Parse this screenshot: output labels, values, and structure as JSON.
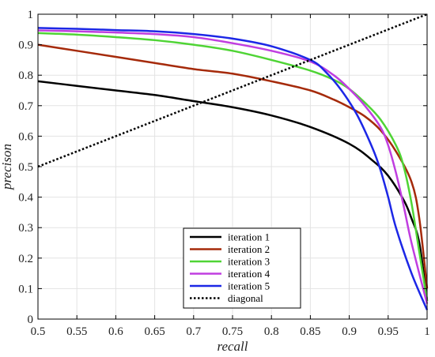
{
  "chart_data": {
    "type": "line",
    "xlabel": "recall",
    "ylabel": "precison",
    "xlim": [
      0.5,
      1.0
    ],
    "ylim": [
      0,
      1
    ],
    "x_ticks": [
      "0.5",
      "0.55",
      "0.6",
      "0.65",
      "0.7",
      "0.75",
      "0.8",
      "0.85",
      "0.9",
      "0.95",
      "1"
    ],
    "y_ticks": [
      "0",
      "0.1",
      "0.2",
      "0.3",
      "0.4",
      "0.5",
      "0.6",
      "0.7",
      "0.8",
      "0.9",
      "1"
    ],
    "grid": true,
    "legend_position": "bottom-center",
    "series": [
      {
        "name": "iteration 1",
        "color": "#000000",
        "dashed": false,
        "points": [
          [
            0.5,
            0.78
          ],
          [
            0.55,
            0.765
          ],
          [
            0.6,
            0.75
          ],
          [
            0.65,
            0.735
          ],
          [
            0.7,
            0.715
          ],
          [
            0.75,
            0.695
          ],
          [
            0.8,
            0.668
          ],
          [
            0.85,
            0.63
          ],
          [
            0.9,
            0.575
          ],
          [
            0.93,
            0.52
          ],
          [
            0.95,
            0.47
          ],
          [
            0.97,
            0.39
          ],
          [
            0.98,
            0.33
          ],
          [
            0.99,
            0.25
          ],
          [
            1.0,
            0.06
          ]
        ]
      },
      {
        "name": "iteration 2",
        "color": "#a52a0a",
        "dashed": false,
        "points": [
          [
            0.5,
            0.9
          ],
          [
            0.55,
            0.88
          ],
          [
            0.6,
            0.86
          ],
          [
            0.65,
            0.84
          ],
          [
            0.7,
            0.82
          ],
          [
            0.75,
            0.805
          ],
          [
            0.8,
            0.78
          ],
          [
            0.85,
            0.75
          ],
          [
            0.88,
            0.72
          ],
          [
            0.9,
            0.695
          ],
          [
            0.92,
            0.665
          ],
          [
            0.94,
            0.62
          ],
          [
            0.96,
            0.55
          ],
          [
            0.98,
            0.45
          ],
          [
            0.99,
            0.33
          ],
          [
            1.0,
            0.1
          ]
        ]
      },
      {
        "name": "iteration 3",
        "color": "#4fd435",
        "dashed": false,
        "points": [
          [
            0.5,
            0.938
          ],
          [
            0.55,
            0.933
          ],
          [
            0.6,
            0.925
          ],
          [
            0.65,
            0.915
          ],
          [
            0.7,
            0.9
          ],
          [
            0.75,
            0.88
          ],
          [
            0.8,
            0.85
          ],
          [
            0.85,
            0.815
          ],
          [
            0.88,
            0.785
          ],
          [
            0.9,
            0.755
          ],
          [
            0.92,
            0.71
          ],
          [
            0.94,
            0.655
          ],
          [
            0.96,
            0.57
          ],
          [
            0.97,
            0.5
          ],
          [
            0.98,
            0.38
          ],
          [
            0.99,
            0.22
          ],
          [
            1.0,
            0.06
          ]
        ]
      },
      {
        "name": "iteration 4",
        "color": "#c03ee0",
        "dashed": false,
        "points": [
          [
            0.5,
            0.947
          ],
          [
            0.55,
            0.944
          ],
          [
            0.6,
            0.94
          ],
          [
            0.65,
            0.935
          ],
          [
            0.7,
            0.925
          ],
          [
            0.75,
            0.905
          ],
          [
            0.8,
            0.88
          ],
          [
            0.85,
            0.845
          ],
          [
            0.88,
            0.8
          ],
          [
            0.9,
            0.755
          ],
          [
            0.92,
            0.7
          ],
          [
            0.94,
            0.63
          ],
          [
            0.95,
            0.57
          ],
          [
            0.96,
            0.48
          ],
          [
            0.97,
            0.37
          ],
          [
            0.98,
            0.25
          ],
          [
            1.0,
            0.05
          ]
        ]
      },
      {
        "name": "iteration 5",
        "color": "#1c27e6",
        "dashed": false,
        "points": [
          [
            0.5,
            0.955
          ],
          [
            0.55,
            0.952
          ],
          [
            0.6,
            0.948
          ],
          [
            0.65,
            0.944
          ],
          [
            0.7,
            0.935
          ],
          [
            0.75,
            0.92
          ],
          [
            0.8,
            0.895
          ],
          [
            0.85,
            0.85
          ],
          [
            0.87,
            0.81
          ],
          [
            0.89,
            0.75
          ],
          [
            0.91,
            0.67
          ],
          [
            0.93,
            0.56
          ],
          [
            0.94,
            0.49
          ],
          [
            0.95,
            0.4
          ],
          [
            0.96,
            0.3
          ],
          [
            0.98,
            0.15
          ],
          [
            1.0,
            0.03
          ]
        ]
      },
      {
        "name": "diagonal",
        "color": "#000000",
        "dashed": true,
        "points": [
          [
            0.5,
            0.5
          ],
          [
            1.0,
            1.0
          ]
        ]
      }
    ]
  }
}
